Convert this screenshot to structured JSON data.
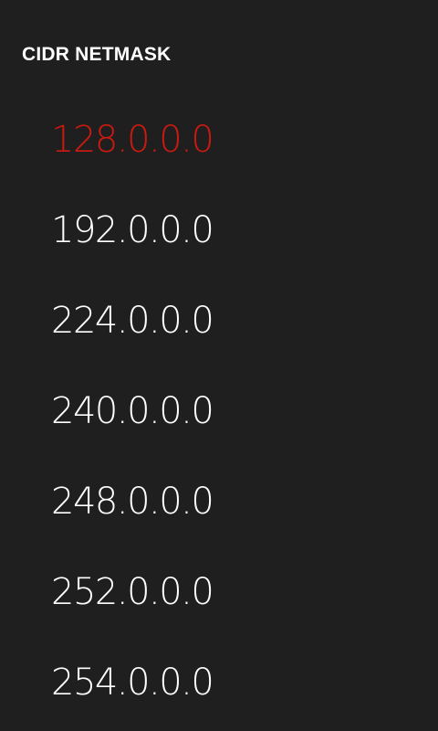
{
  "header": {
    "title": "CIDR NETMASK"
  },
  "list": {
    "selected_index": 0,
    "items": [
      "128.0.0.0",
      "192.0.0.0",
      "224.0.0.0",
      "240.0.0.0",
      "248.0.0.0",
      "252.0.0.0",
      "254.0.0.0"
    ]
  },
  "colors": {
    "background": "#1f1f1f",
    "text": "#ffffff",
    "accent_selected": "#cc1a10"
  }
}
